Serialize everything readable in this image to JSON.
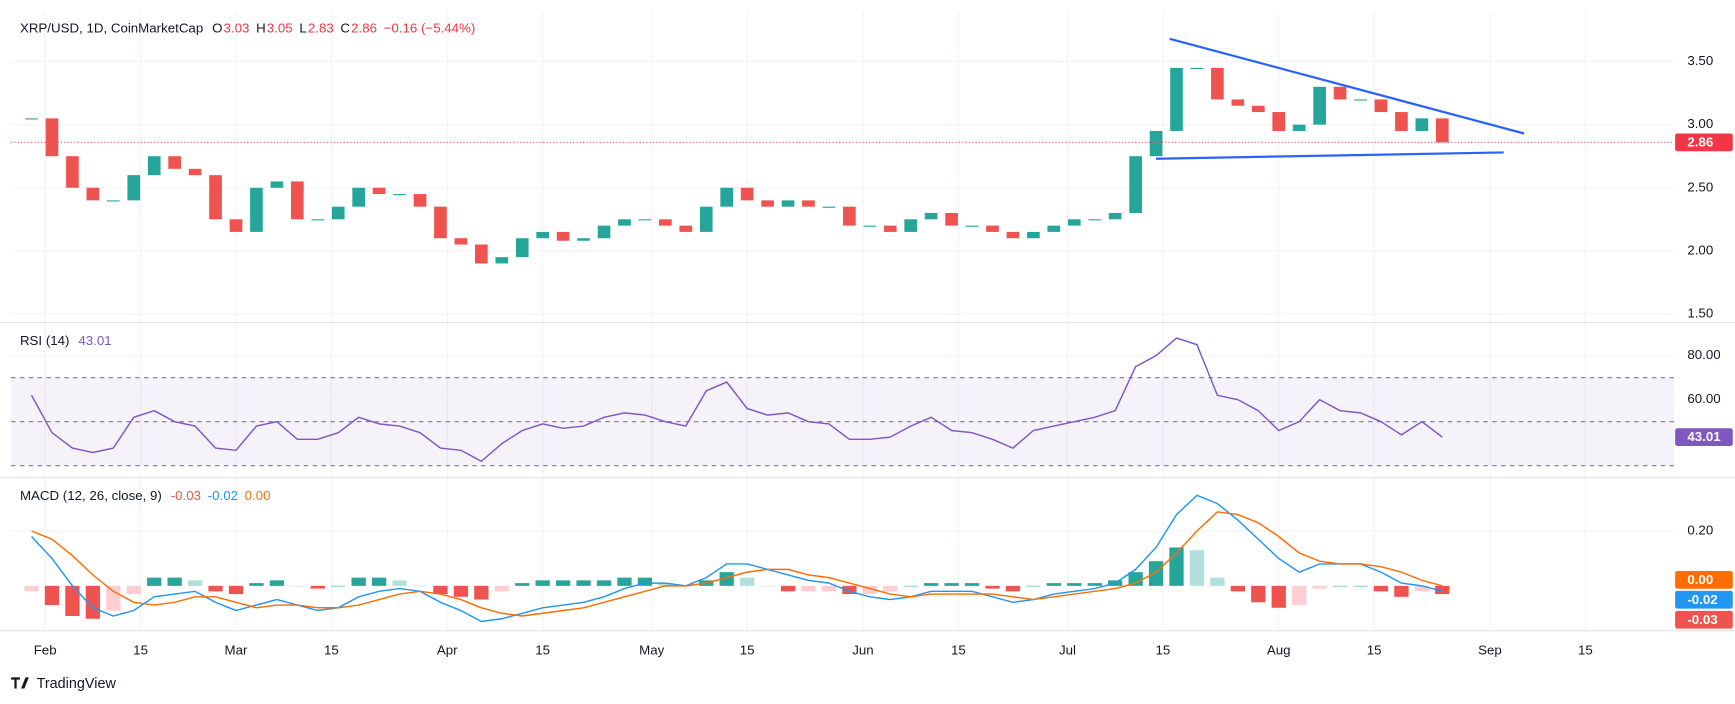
{
  "chart_data": [
    {
      "type": "candlestick",
      "title": "XRP/USD, 1D, CoinMarketCap",
      "ohlc": [
        {
          "label": "O",
          "value": 3.03
        },
        {
          "label": "H",
          "value": 3.05
        },
        {
          "label": "L",
          "value": 2.83
        },
        {
          "label": "C",
          "value": 2.86
        }
      ],
      "change": "−0.16 (−5.44%)",
      "x": [
        30,
        33,
        36,
        39,
        42,
        45,
        48,
        51,
        54,
        57,
        60,
        63,
        66,
        69,
        72,
        75,
        78,
        81,
        84,
        87,
        90,
        93,
        96,
        99,
        102,
        105,
        108,
        111,
        114,
        117,
        120,
        123,
        126,
        129,
        132,
        135,
        138,
        141,
        144,
        147,
        150,
        153,
        156,
        159,
        162,
        165,
        168,
        171,
        174,
        177,
        180,
        183,
        186,
        189,
        192,
        195,
        198,
        201,
        204,
        207,
        210,
        213,
        216,
        219,
        222,
        225,
        228,
        231,
        234,
        237
      ],
      "close": [
        3.05,
        2.75,
        2.5,
        2.4,
        2.4,
        2.6,
        2.75,
        2.65,
        2.6,
        2.25,
        2.15,
        2.5,
        2.55,
        2.25,
        2.25,
        2.35,
        2.5,
        2.45,
        2.45,
        2.35,
        2.1,
        2.05,
        1.9,
        1.95,
        2.1,
        2.15,
        2.08,
        2.1,
        2.2,
        2.25,
        2.25,
        2.2,
        2.15,
        2.35,
        2.5,
        2.4,
        2.35,
        2.4,
        2.35,
        2.35,
        2.2,
        2.2,
        2.15,
        2.25,
        2.3,
        2.2,
        2.2,
        2.15,
        2.1,
        2.15,
        2.2,
        2.25,
        2.25,
        2.3,
        2.75,
        2.95,
        3.45,
        3.45,
        3.2,
        3.15,
        3.1,
        2.95,
        3.0,
        3.3,
        3.2,
        3.2,
        3.1,
        2.95,
        3.05,
        2.86
      ],
      "up_color": "#26a69a",
      "down_color": "#ef5350",
      "xlim": [
        27,
        271
      ],
      "xticks": [
        {
          "value": 32,
          "label": "Feb"
        },
        {
          "value": 46,
          "label": "15"
        },
        {
          "value": 60,
          "label": "Mar"
        },
        {
          "value": 74,
          "label": "15"
        },
        {
          "value": 91,
          "label": "Apr"
        },
        {
          "value": 105,
          "label": "15"
        },
        {
          "value": 121,
          "label": "May"
        },
        {
          "value": 135,
          "label": "15"
        },
        {
          "value": 152,
          "label": "Jun"
        },
        {
          "value": 166,
          "label": "15"
        },
        {
          "value": 182,
          "label": "Jul"
        },
        {
          "value": 196,
          "label": "15"
        },
        {
          "value": 213,
          "label": "Aug"
        },
        {
          "value": 227,
          "label": "15"
        },
        {
          "value": 244,
          "label": "Sep"
        },
        {
          "value": 258,
          "label": "15"
        }
      ],
      "ylim": [
        1.44,
        3.9
      ],
      "yticks": [
        {
          "value": 1.5,
          "label": "1.50"
        },
        {
          "value": 2,
          "label": "2.00"
        },
        {
          "value": 2.5,
          "label": "2.50"
        },
        {
          "value": 3,
          "label": "3.00"
        },
        {
          "value": 3.5,
          "label": "3.50"
        }
      ],
      "trendlines": [
        {
          "x": [
            197,
            249
          ],
          "y": [
            3.68,
            2.93
          ]
        },
        {
          "x": [
            195,
            246
          ],
          "y": [
            2.73,
            2.78
          ]
        }
      ],
      "trendline_color": "#2962ff",
      "grid": true
    },
    {
      "type": "line",
      "title": "RSI (14)",
      "series": [
        {
          "color": "#7e57c2",
          "values": [
            62,
            45,
            38,
            36,
            38,
            52,
            55,
            50,
            48,
            38,
            37,
            48,
            50,
            42,
            42,
            45,
            52,
            49,
            48,
            45,
            38,
            37,
            32,
            40,
            46,
            49,
            47,
            48,
            52,
            54,
            53,
            50,
            48,
            64,
            68,
            56,
            53,
            54,
            50,
            49,
            42,
            42,
            43,
            48,
            52,
            46,
            45,
            42,
            38,
            46,
            48,
            50,
            52,
            55,
            75,
            80,
            88,
            85,
            62,
            60,
            55,
            46,
            50,
            60,
            55,
            54,
            50,
            44,
            50,
            43.01
          ]
        }
      ],
      "ylim": [
        25,
        94.5
      ],
      "yticks": [
        {
          "value": 60,
          "label": "60.00"
        },
        {
          "value": 80,
          "label": "80.00"
        }
      ],
      "levels": [
        70,
        50,
        30
      ],
      "band_color": "#7e57c2",
      "grid": true
    },
    {
      "type": "macd",
      "title": "MACD (12, 26, close, 9)",
      "histogram": {
        "colors": [
          "#26a69a",
          "#b2dfdb",
          "#ffcdd2",
          "#ef5350"
        ],
        "values": [
          -0.02,
          -0.07,
          -0.11,
          -0.12,
          -0.09,
          -0.03,
          0.03,
          0.03,
          0.02,
          -0.02,
          -0.03,
          0.01,
          0.02,
          0,
          -0.01,
          0,
          0.03,
          0.03,
          0.02,
          0,
          -0.03,
          -0.04,
          -0.05,
          -0.02,
          0.01,
          0.02,
          0.02,
          0.02,
          0.02,
          0.03,
          0.03,
          0.01,
          0,
          0.02,
          0.05,
          0.03,
          0,
          -0.02,
          -0.02,
          -0.02,
          -0.03,
          -0.03,
          -0.02,
          0,
          0.01,
          0.01,
          0.01,
          -0.01,
          -0.02,
          0,
          0.01,
          0.01,
          0.01,
          0.02,
          0.05,
          0.09,
          0.14,
          0.13,
          0.03,
          -0.02,
          -0.06,
          -0.08,
          -0.07,
          -0.01,
          0,
          0,
          -0.02,
          -0.04,
          -0.02,
          -0.03
        ]
      },
      "series": [
        {
          "color": "#2196f3",
          "values": [
            0.18,
            0.1,
            0,
            -0.08,
            -0.11,
            -0.09,
            -0.04,
            -0.03,
            -0.02,
            -0.06,
            -0.09,
            -0.07,
            -0.05,
            -0.07,
            -0.09,
            -0.08,
            -0.04,
            -0.02,
            -0.01,
            -0.02,
            -0.06,
            -0.09,
            -0.13,
            -0.12,
            -0.1,
            -0.08,
            -0.07,
            -0.06,
            -0.04,
            -0.01,
            0.01,
            0.01,
            0,
            0.03,
            0.08,
            0.08,
            0.06,
            0.04,
            0.02,
            0.01,
            -0.02,
            -0.04,
            -0.05,
            -0.04,
            -0.02,
            -0.02,
            -0.02,
            -0.04,
            -0.06,
            -0.05,
            -0.03,
            -0.02,
            -0.01,
            0.01,
            0.06,
            0.14,
            0.26,
            0.33,
            0.3,
            0.24,
            0.17,
            0.1,
            0.05,
            0.08,
            0.08,
            0.08,
            0.05,
            0.01,
            0,
            -0.02
          ]
        },
        {
          "color": "#ff6d00",
          "values": [
            0.2,
            0.17,
            0.11,
            0.04,
            -0.02,
            -0.06,
            -0.07,
            -0.06,
            -0.04,
            -0.04,
            -0.06,
            -0.08,
            -0.07,
            -0.07,
            -0.08,
            -0.08,
            -0.07,
            -0.05,
            -0.03,
            -0.02,
            -0.03,
            -0.05,
            -0.08,
            -0.1,
            -0.11,
            -0.1,
            -0.09,
            -0.08,
            -0.06,
            -0.04,
            -0.02,
            0,
            0,
            0.01,
            0.03,
            0.05,
            0.06,
            0.06,
            0.04,
            0.03,
            0.01,
            -0.01,
            -0.03,
            -0.04,
            -0.03,
            -0.03,
            -0.03,
            -0.03,
            -0.04,
            -0.05,
            -0.04,
            -0.03,
            -0.02,
            -0.01,
            0.01,
            0.05,
            0.12,
            0.2,
            0.27,
            0.26,
            0.23,
            0.18,
            0.12,
            0.09,
            0.08,
            0.08,
            0.07,
            0.05,
            0.02,
            0
          ],
          "last_label": "0.00"
        }
      ],
      "ylim": [
        -0.16,
        0.39
      ],
      "yticks": [
        {
          "value": 0.2,
          "label": "0.20"
        }
      ],
      "grid": true
    }
  ],
  "footer": {
    "brand": "TradingView"
  }
}
